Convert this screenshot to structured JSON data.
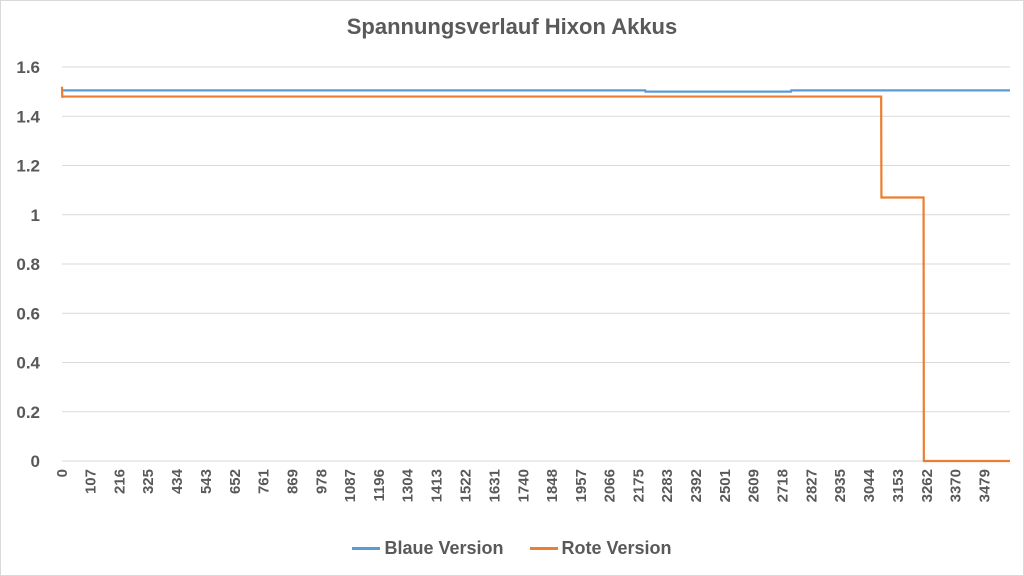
{
  "chart_data": {
    "type": "line",
    "title": "Spannungsverlauf Hixon Akkus",
    "xlabel": "",
    "ylabel": "",
    "ylim": [
      0,
      1.6
    ],
    "yticks": [
      "0",
      "0.2",
      "0.4",
      "0.6",
      "0.8",
      "1",
      "1.2",
      "1.4",
      "1.6"
    ],
    "xticks": [
      "0",
      "107",
      "216",
      "325",
      "434",
      "543",
      "652",
      "761",
      "869",
      "978",
      "1087",
      "1196",
      "1304",
      "1413",
      "1522",
      "1631",
      "1740",
      "1848",
      "1957",
      "2066",
      "2175",
      "2283",
      "2392",
      "2501",
      "2609",
      "2718",
      "2827",
      "2935",
      "3044",
      "3153",
      "3262",
      "3370",
      "3479"
    ],
    "xlim": [
      0,
      3576
    ],
    "grid": true,
    "legend_position": "bottom",
    "series": [
      {
        "name": "Blaue Version",
        "color": "#5b9bd5",
        "x": [
          0,
          2200,
          2201,
          2750,
          2751,
          3576
        ],
        "values": [
          1.505,
          1.505,
          1.5,
          1.5,
          1.505,
          1.505
        ]
      },
      {
        "name": "Rote Version",
        "color": "#ed7d31",
        "x": [
          0,
          1,
          2,
          3090,
          3091,
          3250,
          3251,
          3576
        ],
        "values": [
          1.52,
          1.475,
          1.48,
          1.48,
          1.07,
          1.07,
          0.0,
          0.0
        ]
      }
    ]
  }
}
